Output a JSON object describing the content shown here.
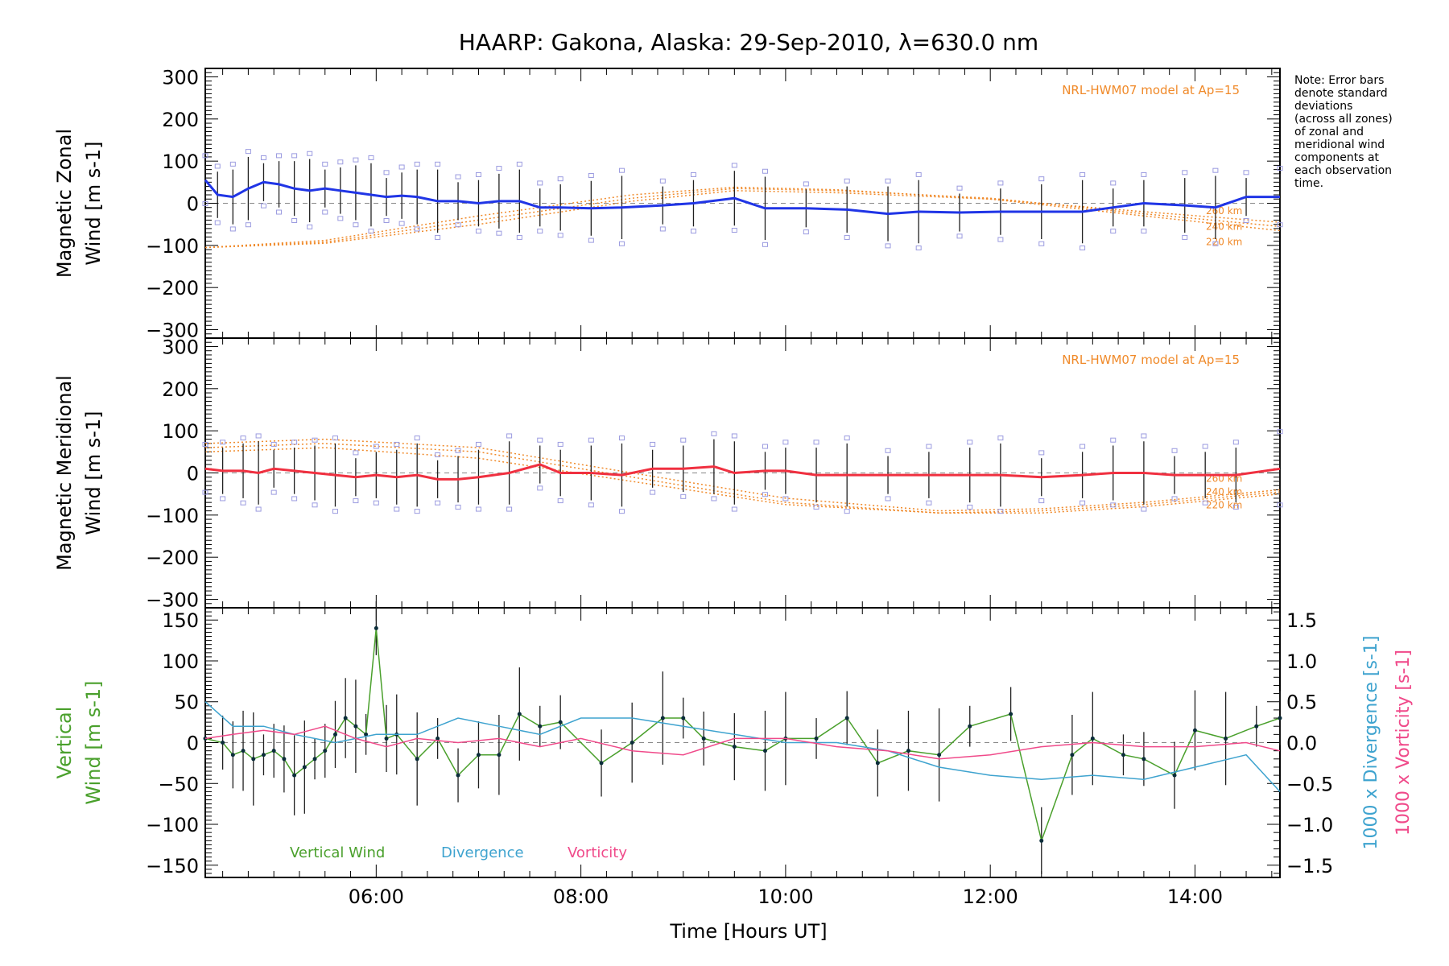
{
  "title": "HAARP: Gakona,  Alaska: 29-Sep-2010, λ=630.0 nm",
  "xlabel": "Time [Hours UT]",
  "note": [
    "Note: Error bars",
    "denote standard",
    "deviations",
    "(across all zones)",
    "of zonal and",
    "meridional wind",
    "components at",
    "each observation",
    "time."
  ],
  "colors": {
    "zonal": "#2035e6",
    "meridional": "#f03040",
    "vertical": "#4aa02c",
    "divergence": "#3ea3cf",
    "vorticity": "#f04a8a",
    "model": "#f08a2a",
    "scatter": "#9b9be0",
    "errorbar": "#202020"
  },
  "chart_data": [
    {
      "id": "zonal",
      "type": "line",
      "ylabel": [
        "Magnetic Zonal",
        "Wind [m s-1]"
      ],
      "ylim": [
        -320,
        320
      ],
      "yticks": [
        -300,
        -200,
        -100,
        0,
        100,
        200,
        300
      ],
      "xlim": [
        4.33,
        14.83
      ],
      "xticks": [
        "06:00",
        "08:00",
        "10:00",
        "12:00",
        "14:00"
      ],
      "model_label": "NRL-HWM07 model at Ap=15",
      "model_curves": [
        {
          "name": "260 km",
          "x": [
            4.33,
            5.5,
            7.0,
            8.5,
            9.5,
            10.5,
            12.0,
            13.5,
            14.83
          ],
          "y": [
            -105,
            -95,
            -50,
            5,
            30,
            25,
            10,
            -20,
            -45
          ]
        },
        {
          "name": "240 km",
          "x": [
            4.33,
            5.5,
            7.0,
            8.5,
            9.5,
            10.5,
            12.0,
            13.5,
            14.83
          ],
          "y": [
            -105,
            -92,
            -40,
            12,
            35,
            30,
            12,
            -25,
            -55
          ]
        },
        {
          "name": "220 km",
          "x": [
            4.33,
            5.5,
            7.0,
            8.5,
            9.5,
            10.5,
            12.0,
            13.5,
            14.83
          ],
          "y": [
            -105,
            -88,
            -30,
            20,
            38,
            32,
            10,
            -30,
            -65
          ]
        }
      ],
      "series": [
        {
          "name": "Zonal wind",
          "x": [
            4.33,
            4.45,
            4.6,
            4.75,
            4.9,
            5.05,
            5.2,
            5.35,
            5.5,
            5.65,
            5.8,
            5.95,
            6.1,
            6.25,
            6.4,
            6.6,
            6.8,
            7.0,
            7.2,
            7.4,
            7.6,
            7.8,
            8.1,
            8.4,
            8.8,
            9.1,
            9.5,
            9.8,
            10.2,
            10.6,
            11.0,
            11.3,
            11.7,
            12.1,
            12.5,
            12.9,
            13.2,
            13.5,
            13.9,
            14.2,
            14.5,
            14.83
          ],
          "y": [
            55,
            20,
            15,
            35,
            50,
            45,
            35,
            30,
            35,
            30,
            25,
            20,
            15,
            18,
            15,
            5,
            5,
            0,
            5,
            5,
            -10,
            -10,
            -12,
            -10,
            -5,
            0,
            12,
            -12,
            -12,
            -15,
            -25,
            -20,
            -22,
            -20,
            -20,
            -20,
            -10,
            0,
            -5,
            -10,
            15,
            15
          ]
        }
      ]
    },
    {
      "id": "meridional",
      "type": "line",
      "ylabel": [
        "Magnetic Meridional",
        "Wind [m s-1]"
      ],
      "ylim": [
        -320,
        320
      ],
      "yticks": [
        -300,
        -200,
        -100,
        0,
        100,
        200,
        300
      ],
      "xlim": [
        4.33,
        14.83
      ],
      "xticks": [
        "06:00",
        "08:00",
        "10:00",
        "12:00",
        "14:00"
      ],
      "model_label": "NRL-HWM07 model at Ap=15",
      "model_curves": [
        {
          "name": "260 km",
          "x": [
            4.33,
            5.5,
            7.0,
            8.5,
            10.0,
            11.5,
            12.5,
            13.5,
            14.83
          ],
          "y": [
            70,
            80,
            60,
            0,
            -60,
            -90,
            -85,
            -70,
            -40
          ]
        },
        {
          "name": "240 km",
          "x": [
            4.33,
            5.5,
            7.0,
            8.5,
            10.0,
            11.5,
            12.5,
            13.5,
            14.83
          ],
          "y": [
            60,
            70,
            50,
            -10,
            -70,
            -95,
            -90,
            -75,
            -45
          ]
        },
        {
          "name": "220 km",
          "x": [
            4.33,
            5.5,
            7.0,
            8.5,
            10.0,
            11.5,
            12.5,
            13.5,
            14.83
          ],
          "y": [
            50,
            60,
            35,
            -20,
            -75,
            -95,
            -95,
            -80,
            -50
          ]
        }
      ],
      "series": [
        {
          "name": "Meridional wind",
          "x": [
            4.33,
            4.5,
            4.7,
            4.85,
            5.0,
            5.2,
            5.4,
            5.6,
            5.8,
            6.0,
            6.2,
            6.4,
            6.6,
            6.8,
            7.0,
            7.3,
            7.6,
            7.8,
            8.1,
            8.4,
            8.7,
            9.0,
            9.3,
            9.5,
            9.8,
            10.0,
            10.3,
            10.6,
            11.0,
            11.4,
            11.8,
            12.1,
            12.5,
            12.9,
            13.2,
            13.5,
            13.8,
            14.1,
            14.4,
            14.83
          ],
          "y": [
            10,
            5,
            5,
            0,
            10,
            5,
            0,
            -5,
            -10,
            -5,
            -10,
            -5,
            -15,
            -15,
            -10,
            0,
            20,
            0,
            0,
            -5,
            10,
            10,
            15,
            0,
            5,
            5,
            -5,
            -5,
            -5,
            -5,
            -5,
            -5,
            -10,
            -5,
            0,
            0,
            -5,
            -5,
            -5,
            10
          ]
        }
      ]
    },
    {
      "id": "vertical",
      "type": "line",
      "ylabel": [
        "Vertical",
        "Wind [m s-1]"
      ],
      "ylim": [
        -165,
        165
      ],
      "yticks": [
        -150,
        -100,
        -50,
        0,
        50,
        100,
        150
      ],
      "y2label": [
        "1000 x Divergence [s-1]",
        "1000 x Vorticity [s-1]"
      ],
      "y2lim": [
        -1.65,
        1.65
      ],
      "y2ticks": [
        -1.5,
        -1.0,
        -0.5,
        0.0,
        0.5,
        1.0,
        1.5
      ],
      "xlim": [
        4.33,
        14.83
      ],
      "xticks": [
        "06:00",
        "08:00",
        "10:00",
        "12:00",
        "14:00"
      ],
      "legend": [
        "Vertical Wind",
        "Divergence",
        "Vorticity"
      ],
      "series": [
        {
          "name": "Vertical Wind",
          "x": [
            4.33,
            4.5,
            4.6,
            4.7,
            4.8,
            4.9,
            5.0,
            5.1,
            5.2,
            5.3,
            5.4,
            5.5,
            5.6,
            5.7,
            5.8,
            5.9,
            6.0,
            6.1,
            6.2,
            6.4,
            6.6,
            6.8,
            7.0,
            7.2,
            7.4,
            7.6,
            7.8,
            8.2,
            8.5,
            8.8,
            9.0,
            9.2,
            9.5,
            9.8,
            10.0,
            10.3,
            10.6,
            10.9,
            11.2,
            11.5,
            11.8,
            12.2,
            12.5,
            12.8,
            13.0,
            13.3,
            13.5,
            13.8,
            14.0,
            14.3,
            14.6,
            14.83
          ],
          "y": [
            5,
            0,
            -15,
            -10,
            -20,
            -15,
            -10,
            -20,
            -40,
            -30,
            -20,
            -10,
            10,
            30,
            20,
            10,
            140,
            5,
            10,
            -20,
            5,
            -40,
            -15,
            -15,
            35,
            20,
            25,
            -25,
            0,
            30,
            30,
            5,
            -5,
            -10,
            5,
            5,
            30,
            -25,
            -10,
            -15,
            20,
            35,
            -120,
            -15,
            5,
            -15,
            -20,
            -40,
            15,
            5,
            20,
            30
          ]
        },
        {
          "name": "Divergence",
          "x": [
            4.33,
            4.6,
            4.9,
            5.2,
            5.6,
            6.0,
            6.4,
            6.8,
            7.2,
            7.6,
            8.0,
            8.5,
            9.0,
            9.5,
            10.0,
            10.5,
            11.0,
            11.5,
            12.0,
            12.5,
            13.0,
            13.5,
            14.0,
            14.5,
            14.83
          ],
          "y": [
            0.5,
            0.2,
            0.2,
            0.1,
            0.0,
            0.1,
            0.1,
            0.3,
            0.2,
            0.1,
            0.3,
            0.3,
            0.2,
            0.1,
            0.0,
            0.0,
            -0.1,
            -0.3,
            -0.4,
            -0.45,
            -0.4,
            -0.45,
            -0.3,
            -0.15,
            -0.6
          ]
        },
        {
          "name": "Vorticity",
          "x": [
            4.33,
            4.6,
            4.9,
            5.2,
            5.5,
            5.8,
            6.1,
            6.4,
            6.8,
            7.2,
            7.6,
            8.0,
            8.5,
            9.0,
            9.5,
            10.0,
            10.5,
            11.0,
            11.5,
            12.0,
            12.5,
            13.0,
            13.5,
            14.0,
            14.5,
            14.83
          ],
          "y": [
            0.05,
            0.1,
            0.15,
            0.1,
            0.2,
            0.05,
            -0.05,
            0.05,
            0.0,
            0.05,
            -0.05,
            0.05,
            -0.1,
            -0.15,
            0.05,
            0.05,
            -0.05,
            -0.1,
            -0.2,
            -0.15,
            -0.05,
            0.0,
            -0.05,
            -0.05,
            0.0,
            -0.1
          ]
        }
      ]
    }
  ]
}
